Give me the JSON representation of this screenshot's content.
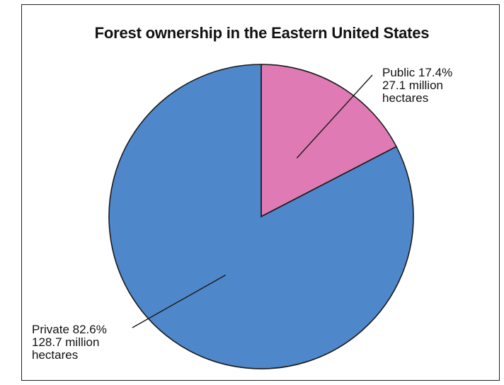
{
  "chart_data": {
    "type": "pie",
    "title": "Forest ownership in the Eastern United States",
    "slices": [
      {
        "name": "Public",
        "percent": 17.4,
        "value": 27.1,
        "label_line1": "Public 17.4%",
        "label_line2": "27.1 million",
        "label_line3": "hectares",
        "color": "#E07AB5"
      },
      {
        "name": "Private",
        "percent": 82.6,
        "value": 128.7,
        "label_line1": "Private 82.6%",
        "label_line2": "128.7 million",
        "label_line3": "hectares",
        "color": "#4F87CB"
      }
    ],
    "unit": "million hectares",
    "start_angle": "12 o'clock",
    "direction": "clockwise"
  }
}
